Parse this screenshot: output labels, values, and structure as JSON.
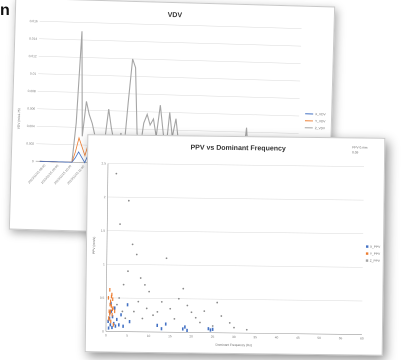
{
  "chart_data": [
    {
      "type": "line",
      "title": "VDV",
      "ylabel": "VDV (m/s1.75)",
      "ylim": [
        0,
        0.016
      ],
      "yticks": [
        "0",
        "0.002",
        "0.004",
        "0.006",
        "0.008",
        "0.01",
        "0.012",
        "0.014",
        "0.016"
      ],
      "x_tick_labels": [
        "2010/11/15 08:00",
        "2010/11/15 09:00",
        "2010/11/15 10:00",
        "2010/11/15 11:00"
      ],
      "legend_position": "right",
      "grid": true,
      "series": [
        {
          "name": "X_VDV",
          "color": "#4472c4",
          "values": [
            0,
            0,
            0,
            0,
            0,
            0,
            0,
            0,
            0,
            0,
            0,
            0.0005,
            0.0012,
            0.0006,
            0,
            0.0009,
            0.0004,
            0,
            0,
            0,
            0,
            0,
            0.0003,
            0,
            0,
            0,
            0,
            0,
            0,
            0,
            0,
            0,
            0,
            0,
            0,
            0,
            0,
            0,
            0,
            0,
            0,
            0,
            0,
            0,
            0,
            0,
            0,
            0,
            0,
            0,
            0,
            0,
            0,
            0,
            0,
            0,
            0,
            0,
            0,
            0,
            0,
            0,
            0,
            0,
            0,
            0,
            0,
            0,
            0,
            0,
            0,
            0,
            0,
            0,
            0,
            0,
            0,
            0,
            0,
            0
          ]
        },
        {
          "name": "Y_VDV",
          "color": "#ed7d31",
          "values": [
            0,
            0,
            0,
            0,
            0,
            0,
            0,
            0,
            0,
            0,
            0,
            0.0012,
            0.0028,
            0.0018,
            0.0008,
            0.0022,
            0.0015,
            0.0006,
            0,
            0,
            0,
            0.0004,
            0.0009,
            0,
            0,
            0,
            0,
            0,
            0,
            0,
            0,
            0,
            0,
            0,
            0,
            0,
            0,
            0,
            0,
            0,
            0,
            0,
            0,
            0,
            0,
            0,
            0,
            0,
            0,
            0,
            0,
            0,
            0,
            0,
            0,
            0,
            0,
            0,
            0,
            0,
            0,
            0,
            0,
            0,
            0,
            0,
            0,
            0,
            0,
            0,
            0,
            0,
            0,
            0,
            0,
            0,
            0,
            0,
            0,
            0
          ]
        },
        {
          "name": "Z_VDV",
          "color": "#a5a5a5",
          "values": [
            0,
            0,
            0,
            0,
            0,
            0,
            0,
            0,
            0,
            0,
            0,
            0.0045,
            0.015,
            0.003,
            0.007,
            0.0055,
            0.0045,
            0.003,
            0.0025,
            0.002,
            0.0025,
            0.0062,
            0.004,
            0.0024,
            0.002,
            0.0035,
            0.0014,
            0.007,
            0.012,
            0.011,
            0.0035,
            0.0015,
            0.0047,
            0.0057,
            0.0045,
            0.0052,
            0.0032,
            0.0068,
            0.004,
            0.0013,
            0.006,
            0.0032,
            0.0053,
            0.0025,
            0.0015,
            0.0008,
            0.0004,
            0.0004,
            0.0003,
            0.0006,
            0.0003,
            0.0007,
            0.0004,
            0.0003,
            0.0004,
            0.0005,
            0,
            0,
            0,
            0.0003,
            0.0002,
            0.0004,
            0.0004,
            0.0003,
            0.0045,
            0.0002,
            0.0003,
            0.0002,
            0.0001,
            0.0001,
            0,
            0,
            0,
            0,
            0,
            0,
            0.0002,
            0.0002,
            0,
            0
          ]
        }
      ]
    },
    {
      "type": "scatter",
      "title": "PPV vs Dominant Frequency",
      "xlabel": "Dominant Frequency (Hz)",
      "ylabel": "PPV (mm/s)",
      "xlim": [
        0,
        60
      ],
      "ylim": [
        0,
        2.5
      ],
      "xticks": [
        "0",
        "5",
        "10",
        "15",
        "20",
        "25",
        "30",
        "35",
        "40",
        "45",
        "50",
        "55",
        "60"
      ],
      "yticks": [
        "0",
        "0.5",
        "1",
        "1.5",
        "2",
        "2.5"
      ],
      "annotation": [
        "PPV 0.mm",
        "0.09"
      ],
      "legend_position": "right",
      "grid": true,
      "series": [
        {
          "name": "X_PPV",
          "color": "#4472c4",
          "points": [
            [
              0.5,
              0.15
            ],
            [
              0.8,
              0.2
            ],
            [
              1,
              0.1
            ],
            [
              1.2,
              0.3
            ],
            [
              1.5,
              0.22
            ],
            [
              0.6,
              0.05
            ],
            [
              1.8,
              0.12
            ],
            [
              2.5,
              0.18
            ],
            [
              3,
              0.1
            ],
            [
              3.5,
              0.25
            ],
            [
              4,
              0.08
            ],
            [
              5,
              0.4
            ],
            [
              5.5,
              0.15
            ],
            [
              2,
              0.35
            ],
            [
              1.1,
              0.42
            ],
            [
              12,
              0.1
            ],
            [
              13,
              0.05
            ],
            [
              14,
              0.12
            ],
            [
              18,
              0.05
            ],
            [
              18.5,
              0.08
            ],
            [
              19,
              0.03
            ],
            [
              24,
              0.06
            ],
            [
              24.5,
              0.04
            ],
            [
              25,
              0.05
            ],
            [
              0.9,
              0.28
            ],
            [
              2.2,
              0.08
            ],
            [
              1.4,
              0.06
            ]
          ]
        },
        {
          "name": "Y_PPV",
          "color": "#ed7d31",
          "points": [
            [
              0.5,
              0.5
            ],
            [
              0.7,
              0.3
            ],
            [
              1,
              0.45
            ],
            [
              1.2,
              0.38
            ],
            [
              1.4,
              0.25
            ],
            [
              1.6,
              0.35
            ],
            [
              0.8,
              0.62
            ],
            [
              1.1,
              0.15
            ],
            [
              1.3,
              0.55
            ],
            [
              0.6,
              0.2
            ],
            [
              0.9,
              0.4
            ],
            [
              1.5,
              0.48
            ],
            [
              1.7,
              0.1
            ],
            [
              2,
              0.3
            ],
            [
              1,
              0.3
            ],
            [
              0.7,
              0.18
            ],
            [
              1.2,
              0.52
            ],
            [
              0.85,
              0.26
            ],
            [
              1.45,
              0.33
            ]
          ]
        },
        {
          "name": "Z_PPV",
          "color": "#a5a5a5",
          "points": [
            [
              2,
              2.35
            ],
            [
              3,
              1.6
            ],
            [
              5,
              1.95
            ],
            [
              6,
              1.3
            ],
            [
              7,
              1.15
            ],
            [
              5,
              0.9
            ],
            [
              4,
              0.7
            ],
            [
              8,
              0.8
            ],
            [
              9,
              0.7
            ],
            [
              10,
              0.6
            ],
            [
              14,
              1.1
            ],
            [
              17,
              0.5
            ],
            [
              18,
              0.65
            ],
            [
              19,
              0.4
            ],
            [
              20,
              0.3
            ],
            [
              21,
              0.22
            ],
            [
              16,
              0.2
            ],
            [
              15,
              0.35
            ],
            [
              13,
              0.45
            ],
            [
              12,
              0.3
            ],
            [
              11,
              0.25
            ],
            [
              26,
              0.45
            ],
            [
              27,
              0.25
            ],
            [
              25,
              0.1
            ],
            [
              30,
              0.08
            ],
            [
              29,
              0.15
            ],
            [
              33,
              0.05
            ],
            [
              3,
              0.5
            ],
            [
              2.5,
              0.4
            ],
            [
              6.5,
              0.3
            ],
            [
              7.5,
              0.45
            ],
            [
              8.5,
              0.2
            ],
            [
              9.5,
              0.35
            ],
            [
              4.5,
              0.2
            ],
            [
              3.8,
              0.3
            ],
            [
              22,
              0.15
            ],
            [
              23,
              0.32
            ]
          ]
        }
      ]
    }
  ]
}
